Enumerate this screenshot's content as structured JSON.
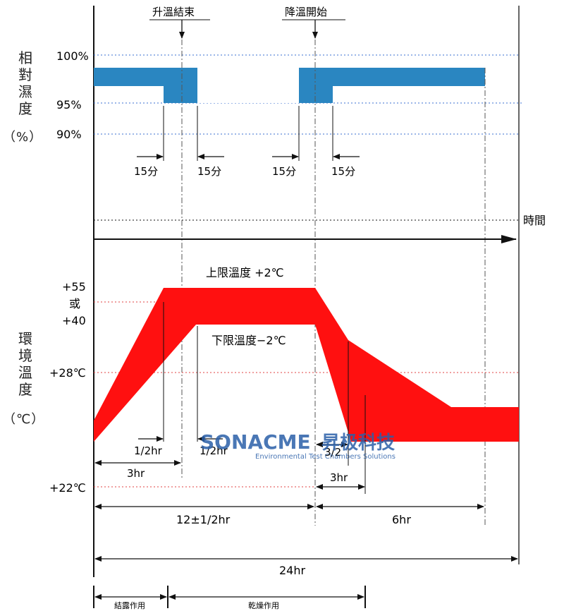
{
  "humidity": {
    "axis_label": "相對濕度",
    "unit": "（%）",
    "ticks": [
      "100%",
      "95%",
      "90%"
    ],
    "events": {
      "rise_end": "升溫結束",
      "fall_start": "降溫開始"
    },
    "durations": [
      "15分",
      "15分",
      "15分",
      "15分"
    ],
    "band_color": "#2a86c1"
  },
  "time_label": "時間",
  "temperature": {
    "axis_label": "環境溫度",
    "unit": "（℃）",
    "ticks": {
      "high_top": "+55",
      "or": "或",
      "high_bottom": "+40",
      "mid": "+28℃",
      "low": "+22℃"
    },
    "upper_limit": "上限溫度 +2℃",
    "lower_limit": "下限溫度−2℃",
    "band_color": "#ff1010"
  },
  "intervals": {
    "half_hr_a": "1/2hr",
    "half_hr_b": "1/2hr",
    "three_hr_a": "3hr",
    "three_halves": "3/2",
    "three_hr_b": "3hr",
    "twelve": "12±1/2hr",
    "six": "6hr",
    "total": "24hr"
  },
  "phases": {
    "condensation": "結露作用",
    "drying": "乾燥作用"
  },
  "watermark": {
    "brand": "SONACME",
    "brand_cn": "昇极科技",
    "tagline": "Environmental Test Chambers Solutions"
  }
}
